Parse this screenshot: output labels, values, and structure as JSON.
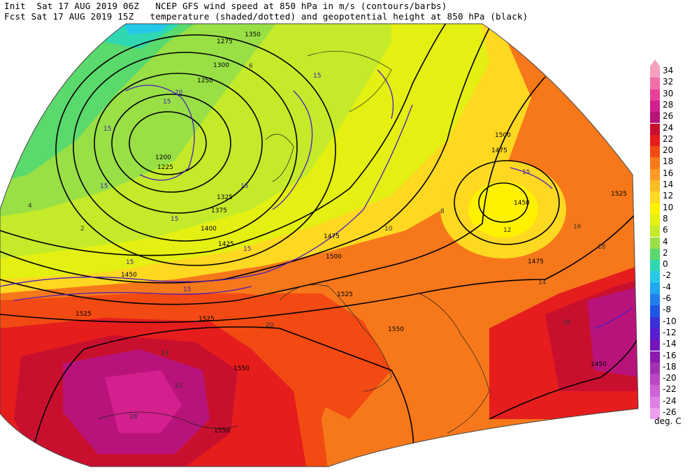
{
  "header": {
    "line1": "Init  Sat 17 AUG 2019 06Z   NCEP GFS wind speed at 850 hPa in m/s (contours/barbs)",
    "line2": "Fcst Sat 17 AUG 2019 15Z   temperature (shaded/dotted) and geopotential height at 850 hPa (black)"
  },
  "legend": {
    "units": "deg. C",
    "ticks": [
      "34",
      "32",
      "30",
      "28",
      "26",
      "24",
      "22",
      "20",
      "18",
      "16",
      "14",
      "12",
      "10",
      "8",
      "6",
      "4",
      "2",
      "0",
      "-2",
      "-4",
      "-6",
      "-8",
      "-10",
      "-12",
      "-14",
      "-16",
      "-18",
      "-20",
      "-22",
      "-24",
      "-26"
    ],
    "colors": [
      "#f6a0bf",
      "#f06fa8",
      "#e8409a",
      "#d41f8e",
      "#b8137a",
      "#c8102e",
      "#e51d1d",
      "#f24a12",
      "#f7781a",
      "#fb9a22",
      "#fdbb23",
      "#fed821",
      "#fff200",
      "#e3f011",
      "#c4ea2a",
      "#98e046",
      "#5ad96c",
      "#2fd8b0",
      "#26c8e8",
      "#1fa6ee",
      "#1f7fec",
      "#1f55e4",
      "#3c2fdc",
      "#5a1ed0",
      "#7415bd",
      "#8c1ab2",
      "#a32fb4",
      "#bb47c5",
      "#d060d7",
      "#e07ee4",
      "#ee9ff0"
    ]
  },
  "map_labels": {
    "heights": [
      "1350",
      "1300",
      "1275",
      "1250",
      "1200",
      "1225",
      "1325",
      "1375",
      "1400",
      "1425",
      "1450",
      "1475",
      "1500",
      "1525",
      "1550",
      "1450",
      "1475",
      "1500",
      "1525",
      "1475",
      "1450",
      "1525",
      "1525",
      "1550",
      "1550"
    ],
    "temps": [
      "2",
      "4",
      "6",
      "8",
      "10",
      "12",
      "14",
      "16",
      "18",
      "20",
      "22",
      "24",
      "26",
      "28"
    ],
    "winds": [
      "15",
      "20",
      "15",
      "15",
      "15",
      "15",
      "15",
      "15",
      "15",
      "15",
      "15"
    ]
  },
  "colors": {
    "cold": "#5ad96c",
    "cool": "#c4ea2a",
    "mild": "#fff200",
    "warm": "#fb9a22",
    "hot": "#e51d1d",
    "very_hot": "#c8102e",
    "extreme": "#d41f8e"
  }
}
